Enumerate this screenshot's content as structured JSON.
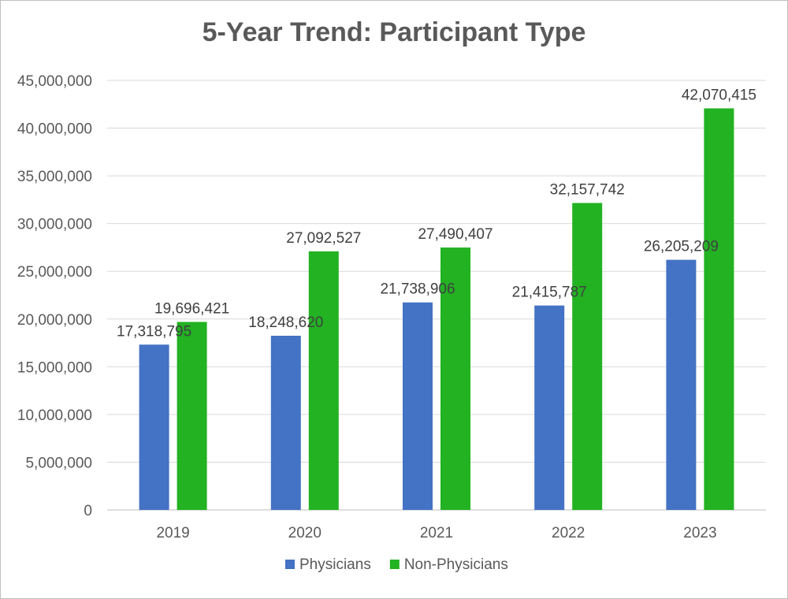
{
  "chart_data": {
    "type": "bar",
    "title": "5-Year Trend: Participant Type",
    "xlabel": "",
    "ylabel": "",
    "categories": [
      "2019",
      "2020",
      "2021",
      "2022",
      "2023"
    ],
    "series": [
      {
        "name": "Physicians",
        "color": "#4472c4",
        "values": [
          17318795,
          18248620,
          21738906,
          21415787,
          26205209
        ],
        "labels": [
          "17,318,795",
          "18,248,620",
          "21,738,906",
          "21,415,787",
          "26,205,209"
        ]
      },
      {
        "name": "Non-Physicians",
        "color": "#22b222",
        "values": [
          19696421,
          27092527,
          27490407,
          32157742,
          42070415
        ],
        "labels": [
          "19,696,421",
          "27,092,527",
          "27,490,407",
          "32,157,742",
          "42,070,415"
        ]
      }
    ],
    "ylim": [
      0,
      45000000
    ],
    "yticks": [
      0,
      5000000,
      10000000,
      15000000,
      20000000,
      25000000,
      30000000,
      35000000,
      40000000,
      45000000
    ],
    "ytick_labels": [
      "0",
      "5,000,000",
      "10,000,000",
      "15,000,000",
      "20,000,000",
      "25,000,000",
      "30,000,000",
      "35,000,000",
      "40,000,000",
      "45,000,000"
    ],
    "grid": true,
    "legend_position": "bottom"
  }
}
